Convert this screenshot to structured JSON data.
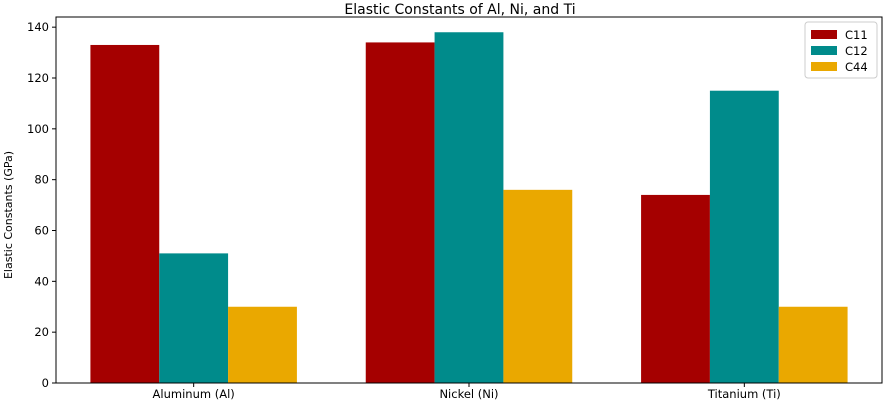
{
  "chart_data": {
    "type": "bar",
    "title": "Elastic Constants of Al, Ni, and Ti",
    "xlabel": "",
    "ylabel": "Elastic Constants (GPa)",
    "categories": [
      "Aluminum (Al)",
      "Nickel (Ni)",
      "Titanium (Ti)"
    ],
    "series": [
      {
        "name": "C11",
        "color": "#a50000",
        "values": [
          133,
          134,
          74
        ]
      },
      {
        "name": "C12",
        "color": "#008b8b",
        "values": [
          51,
          138,
          115
        ]
      },
      {
        "name": "C44",
        "color": "#eaa800",
        "values": [
          30,
          76,
          30
        ]
      }
    ],
    "ylim": [
      0,
      144
    ],
    "yticks": [
      0,
      20,
      40,
      60,
      80,
      100,
      120,
      140
    ],
    "grid": false,
    "legend": "top-right"
  }
}
